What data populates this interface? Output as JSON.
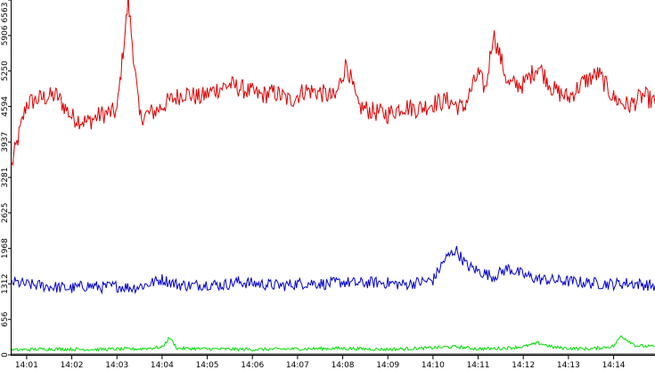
{
  "chart_data": {
    "type": "line",
    "title": "",
    "xlabel": "",
    "ylabel": "",
    "ylim": [
      0,
      6563
    ],
    "y_ticks": [
      0,
      656,
      1312,
      1968,
      2625,
      3281,
      3937,
      4594,
      5250,
      5906,
      6563
    ],
    "y_tick_labels": [
      "0",
      "656",
      "1312",
      "1968",
      "2625",
      "3281",
      "3937",
      "4594",
      "5250",
      "5906",
      "6563"
    ],
    "x_range": [
      "14:00:40",
      "14:14:55"
    ],
    "x_ticks": [
      "14:01",
      "14:02",
      "14:03",
      "14:04",
      "14:05",
      "14:06",
      "14:07",
      "14:08",
      "14:09",
      "14:10",
      "14:11",
      "14:12",
      "14:13",
      "14:14"
    ],
    "grid": false,
    "legend": "none",
    "series": [
      {
        "color": "#dd0000",
        "x": [
          "14:00:40",
          "14:01:00",
          "14:01:20",
          "14:01:40",
          "14:02:00",
          "14:02:20",
          "14:02:40",
          "14:03:00",
          "14:03:15",
          "14:03:30",
          "14:03:50",
          "14:04:10",
          "14:04:30",
          "14:04:50",
          "14:05:10",
          "14:05:30",
          "14:05:50",
          "14:06:10",
          "14:06:30",
          "14:06:50",
          "14:07:10",
          "14:07:30",
          "14:07:50",
          "14:08:05",
          "14:08:20",
          "14:08:40",
          "14:09:00",
          "14:09:20",
          "14:09:40",
          "14:10:00",
          "14:10:20",
          "14:10:40",
          "14:11:00",
          "14:11:10",
          "14:11:20",
          "14:11:40",
          "14:12:00",
          "14:12:20",
          "14:12:40",
          "14:13:00",
          "14:13:20",
          "14:13:40",
          "14:14:00",
          "14:14:20",
          "14:14:40",
          "14:14:55"
        ],
        "values": [
          3500,
          4650,
          4750,
          4800,
          4400,
          4300,
          4450,
          4500,
          6550,
          4400,
          4500,
          4700,
          4850,
          4750,
          4900,
          5000,
          4900,
          4800,
          4850,
          4700,
          4900,
          4850,
          4750,
          5400,
          4600,
          4500,
          4450,
          4600,
          4550,
          4650,
          4700,
          4550,
          5200,
          4900,
          5950,
          5000,
          5000,
          5350,
          4900,
          4750,
          5050,
          5200,
          4750,
          4600,
          4800,
          4650
        ]
      },
      {
        "color": "#0000cc",
        "x": [
          "14:00:40",
          "14:01:00",
          "14:01:20",
          "14:01:40",
          "14:02:00",
          "14:02:20",
          "14:02:40",
          "14:03:00",
          "14:03:20",
          "14:03:40",
          "14:04:00",
          "14:04:20",
          "14:04:40",
          "14:05:00",
          "14:05:20",
          "14:05:40",
          "14:06:00",
          "14:06:20",
          "14:06:40",
          "14:07:00",
          "14:07:20",
          "14:07:40",
          "14:08:00",
          "14:08:20",
          "14:08:40",
          "14:09:00",
          "14:09:20",
          "14:09:40",
          "14:10:00",
          "14:10:15",
          "14:10:30",
          "14:10:45",
          "14:11:00",
          "14:11:20",
          "14:11:40",
          "14:12:00",
          "14:12:20",
          "14:12:40",
          "14:13:00",
          "14:13:20",
          "14:13:40",
          "14:14:00",
          "14:14:20",
          "14:14:40",
          "14:14:55"
        ],
        "values": [
          1350,
          1300,
          1280,
          1250,
          1230,
          1280,
          1250,
          1270,
          1240,
          1300,
          1400,
          1300,
          1280,
          1310,
          1290,
          1350,
          1320,
          1300,
          1280,
          1320,
          1330,
          1310,
          1350,
          1320,
          1340,
          1330,
          1300,
          1340,
          1380,
          1750,
          1950,
          1650,
          1550,
          1450,
          1600,
          1480,
          1400,
          1380,
          1360,
          1340,
          1320,
          1310,
          1330,
          1300,
          1280
        ]
      },
      {
        "color": "#00dd00",
        "x": [
          "14:00:40",
          "14:01:30",
          "14:02:30",
          "14:03:30",
          "14:04:00",
          "14:04:10",
          "14:04:20",
          "14:05:00",
          "14:06:00",
          "14:07:00",
          "14:08:00",
          "14:09:00",
          "14:10:00",
          "14:10:30",
          "14:11:00",
          "14:11:30",
          "14:12:00",
          "14:12:20",
          "14:12:40",
          "14:13:00",
          "14:13:30",
          "14:14:00",
          "14:14:10",
          "14:14:30",
          "14:14:55"
        ],
        "values": [
          90,
          110,
          100,
          110,
          140,
          320,
          120,
          110,
          100,
          110,
          120,
          100,
          130,
          150,
          110,
          120,
          150,
          220,
          140,
          120,
          110,
          160,
          350,
          170,
          150
        ]
      },
      {
        "color": "#000000",
        "x": [
          "14:00:40",
          "14:14:55"
        ],
        "values": [
          15,
          15
        ]
      }
    ]
  }
}
